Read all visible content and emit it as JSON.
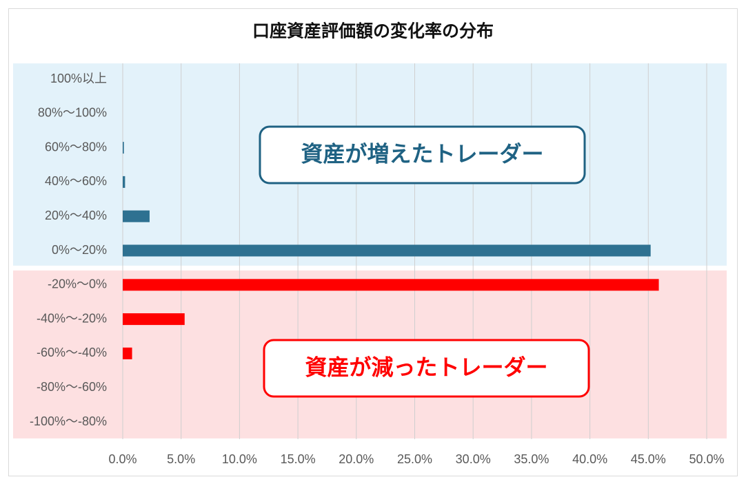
{
  "chart_data": {
    "type": "bar",
    "orientation": "horizontal",
    "title": "口座資産評価額の変化率の分布",
    "categories": [
      "100%以上",
      "80%〜100%",
      "60%〜80%",
      "40%〜60%",
      "20%〜40%",
      "0%〜20%",
      "-20%〜0%",
      "-40%〜-20%",
      "-60%〜-40%",
      "-80%〜-60%",
      "-100%〜-80%"
    ],
    "series": [
      {
        "name": "資産が増えたトレーダー",
        "color": "#2e7191",
        "band_color": "#e3f2fa",
        "values": [
          0,
          0,
          0.1,
          0.2,
          2.3,
          45.2,
          null,
          null,
          null,
          null,
          null
        ]
      },
      {
        "name": "資産が減ったトレーダー",
        "color": "#ff0000",
        "band_color": "#fde0e1",
        "values": [
          null,
          null,
          null,
          null,
          null,
          null,
          45.9,
          5.3,
          0.8,
          0,
          0
        ]
      }
    ],
    "xlim": [
      0,
      50
    ],
    "xticks": [
      {
        "value": 0,
        "label": "0.0%"
      },
      {
        "value": 5,
        "label": "5.0%"
      },
      {
        "value": 10,
        "label": "10.0%"
      },
      {
        "value": 15,
        "label": "15.0%"
      },
      {
        "value": 20,
        "label": "20.0%"
      },
      {
        "value": 25,
        "label": "25.0%"
      },
      {
        "value": 30,
        "label": "30.0%"
      },
      {
        "value": 35,
        "label": "35.0%"
      },
      {
        "value": 40,
        "label": "40.0%"
      },
      {
        "value": 45,
        "label": "45.0%"
      },
      {
        "value": 50,
        "label": "50.0%"
      }
    ],
    "grid": true
  }
}
